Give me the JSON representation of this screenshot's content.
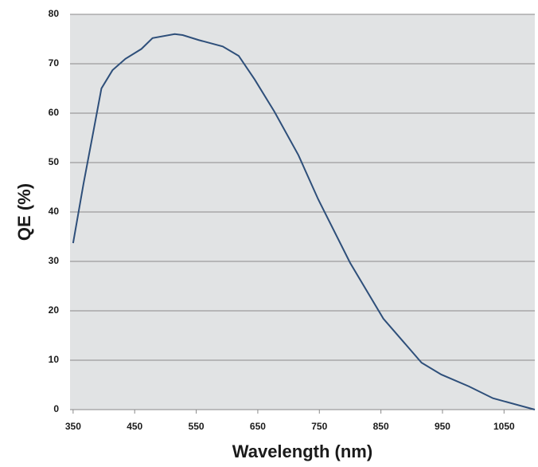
{
  "chart_data": {
    "type": "line",
    "x_label": "Wavelength (nm)",
    "y_label": "QE (%)",
    "xlim": [
      345,
      1100
    ],
    "ylim": [
      0,
      80
    ],
    "xticks": [
      350,
      450,
      550,
      650,
      750,
      850,
      950,
      1050
    ],
    "yticks": [
      0,
      10,
      20,
      30,
      40,
      50,
      60,
      70,
      80
    ],
    "grid": true,
    "background": "#e1e3e4",
    "series": [
      {
        "color": "#2e4f7a",
        "x": [
          350,
          367,
          384,
          396,
          414,
          435,
          461,
          479,
          515,
          528,
          554,
          593,
          619,
          645,
          677,
          716,
          748,
          800,
          854,
          916,
          948,
          993,
          1032,
          1100
        ],
        "values": [
          33.7,
          45.8,
          57,
          65,
          68.7,
          71,
          73,
          75.2,
          76,
          75.8,
          74.8,
          73.5,
          71.6,
          66.8,
          60.3,
          51.5,
          42.6,
          29.7,
          18.4,
          9.5,
          7.1,
          4.7,
          2.3,
          0
        ]
      }
    ]
  }
}
